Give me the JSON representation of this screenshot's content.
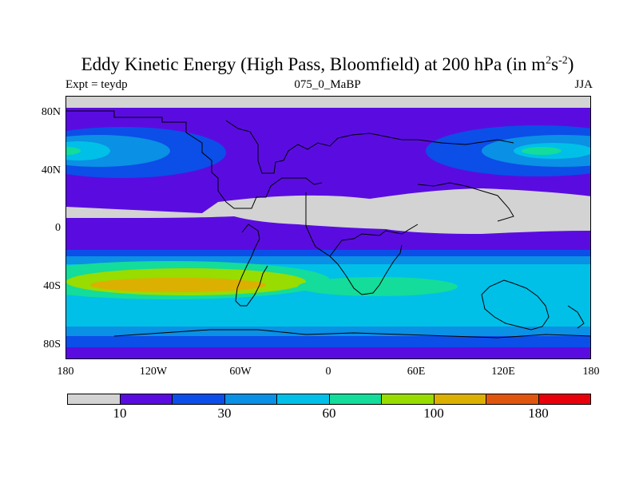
{
  "title": {
    "main": "Eddy Kinetic Energy (High Pass, Bloomfield) at 200 hPa (in m",
    "sup1": "2",
    "mid": "s",
    "sup2": "-2",
    "end": ")"
  },
  "subtitle": {
    "left": "Expt = teydp",
    "center": "075_0_MaBP",
    "right": "JJA"
  },
  "y_ticks": [
    "80N",
    "40N",
    "0",
    "40S",
    "80S"
  ],
  "x_ticks": [
    "180",
    "120W",
    "60W",
    "0",
    "60E",
    "120E",
    "180"
  ],
  "colorbar": {
    "colors": [
      "#d3d3d3",
      "#5a0ce0",
      "#0c4ee8",
      "#0a90e4",
      "#00c0e8",
      "#14dc9a",
      "#98dc00",
      "#dcb000",
      "#e0560e",
      "#e8000a"
    ],
    "labels": [
      "10",
      "30",
      "60",
      "100",
      "180"
    ]
  },
  "map": {
    "bands": [
      {
        "lat_top": 90,
        "lat_bottom": 82,
        "color": "#d3d3d3"
      },
      {
        "lat_top": 82,
        "lat_bottom": 25,
        "color": "#5a0ce0"
      },
      {
        "lat_top": 25,
        "lat_bottom": 12,
        "color": "#5a0ce0"
      },
      {
        "lat_top": 12,
        "lat_bottom": -5,
        "color": "#5a0ce0"
      },
      {
        "lat_top": -5,
        "lat_bottom": -15,
        "color": "#5a0ce0"
      },
      {
        "lat_top": -15,
        "lat_bottom": -25,
        "color": "#0c4ee8"
      },
      {
        "lat_top": -25,
        "lat_bottom": -70,
        "color": "#00c0e8"
      },
      {
        "lat_top": -70,
        "lat_bottom": -80,
        "color": "#0a90e4"
      },
      {
        "lat_top": -80,
        "lat_bottom": -90,
        "color": "#5a0ce0"
      }
    ]
  }
}
